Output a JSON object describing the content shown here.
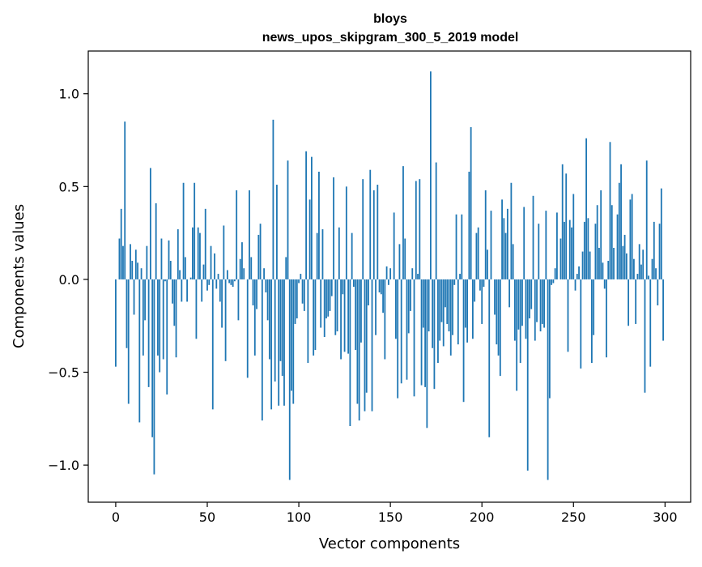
{
  "chart_data": {
    "type": "bar",
    "title": "bloys",
    "subtitle": "news_upos_skipgram_300_5_2019 model",
    "xlabel": "Vector components",
    "ylabel": "Components values",
    "xlim": [
      -15,
      314
    ],
    "ylim": [
      -1.2,
      1.23
    ],
    "x_ticks": [
      0,
      50,
      100,
      150,
      200,
      250,
      300
    ],
    "x_tick_labels": [
      "0",
      "50",
      "100",
      "150",
      "200",
      "250",
      "300"
    ],
    "y_ticks": [
      -1.0,
      -0.5,
      0.0,
      0.5,
      1.0
    ],
    "y_tick_labels": [
      "−1.0",
      "−0.5",
      "0.0",
      "0.5",
      "1.0"
    ],
    "grid": false,
    "legend": "none",
    "bar_color": "#1f77b4",
    "x": "0..299",
    "values": [
      -0.47,
      0.0,
      0.22,
      0.38,
      0.18,
      0.85,
      -0.37,
      -0.67,
      0.19,
      0.1,
      -0.19,
      0.16,
      0.09,
      -0.77,
      0.06,
      -0.41,
      -0.22,
      0.18,
      -0.58,
      0.6,
      -0.85,
      -1.05,
      0.41,
      -0.41,
      -0.5,
      0.22,
      -0.43,
      -0.01,
      -0.62,
      0.21,
      0.1,
      -0.13,
      -0.25,
      -0.42,
      0.27,
      0.05,
      -0.12,
      0.52,
      0.12,
      -0.12,
      0.0,
      0.01,
      0.28,
      0.52,
      -0.32,
      0.28,
      0.25,
      -0.12,
      0.08,
      0.38,
      -0.06,
      -0.03,
      0.18,
      -0.7,
      0.14,
      -0.05,
      0.03,
      -0.12,
      -0.26,
      0.29,
      -0.44,
      0.05,
      -0.02,
      -0.03,
      -0.04,
      -0.01,
      0.48,
      -0.22,
      0.11,
      0.2,
      0.06,
      0.0,
      -0.53,
      0.48,
      0.12,
      -0.14,
      -0.41,
      -0.16,
      0.24,
      0.3,
      -0.76,
      0.06,
      -0.07,
      -0.22,
      -0.43,
      -0.7,
      0.86,
      -0.55,
      0.51,
      -0.68,
      -0.44,
      -0.52,
      -0.68,
      0.12,
      0.64,
      -1.08,
      -0.6,
      -0.67,
      -0.24,
      -0.21,
      -0.02,
      0.03,
      -0.13,
      -0.17,
      0.69,
      -0.45,
      0.43,
      0.66,
      -0.41,
      -0.38,
      0.25,
      0.58,
      -0.26,
      0.27,
      -0.31,
      -0.21,
      -0.2,
      -0.17,
      -0.09,
      0.55,
      -0.3,
      -0.28,
      0.28,
      -0.43,
      -0.08,
      -0.39,
      0.5,
      -0.4,
      -0.79,
      0.25,
      -0.04,
      -0.38,
      -0.67,
      -0.76,
      -0.34,
      0.54,
      -0.71,
      -0.61,
      -0.14,
      0.59,
      -0.71,
      0.48,
      -0.3,
      0.51,
      -0.07,
      -0.08,
      -0.18,
      -0.43,
      0.07,
      -0.03,
      0.06,
      0.0,
      0.36,
      -0.32,
      -0.64,
      0.19,
      -0.56,
      0.61,
      0.22,
      -0.54,
      -0.29,
      -0.17,
      0.06,
      -0.63,
      0.53,
      0.03,
      0.54,
      -0.57,
      -0.26,
      -0.58,
      -0.8,
      -0.28,
      1.12,
      -0.37,
      -0.59,
      0.63,
      -0.45,
      -0.33,
      -0.23,
      -0.36,
      -0.15,
      -0.24,
      -0.28,
      -0.41,
      -0.3,
      -0.03,
      0.35,
      -0.35,
      0.03,
      0.35,
      -0.66,
      -0.26,
      -0.34,
      0.58,
      0.82,
      -0.32,
      -0.12,
      0.25,
      0.28,
      -0.06,
      -0.24,
      -0.04,
      0.48,
      0.16,
      -0.85,
      0.37,
      0.0,
      -0.19,
      -0.35,
      -0.41,
      -0.52,
      0.43,
      0.33,
      0.25,
      0.38,
      -0.15,
      0.52,
      0.19,
      -0.33,
      -0.6,
      -0.27,
      -0.45,
      -0.25,
      0.39,
      -0.32,
      -1.03,
      -0.21,
      -0.16,
      0.45,
      -0.33,
      -0.23,
      0.3,
      -0.28,
      -0.24,
      -0.26,
      0.37,
      -1.08,
      -0.64,
      -0.03,
      -0.02,
      0.06,
      0.36,
      0.0,
      0.22,
      0.62,
      0.31,
      0.57,
      -0.39,
      0.32,
      0.28,
      0.46,
      -0.06,
      0.03,
      0.07,
      -0.48,
      0.15,
      0.31,
      0.76,
      0.33,
      0.15,
      -0.45,
      -0.3,
      0.3,
      0.4,
      0.17,
      0.48,
      0.09,
      -0.05,
      -0.42,
      0.1,
      0.74,
      0.4,
      0.17,
      0.0,
      0.35,
      0.52,
      0.62,
      0.18,
      0.24,
      0.14,
      -0.25,
      0.43,
      0.46,
      0.11,
      -0.24,
      0.03,
      0.19,
      0.08,
      0.16,
      -0.61,
      0.64,
      0.02,
      -0.47,
      0.11,
      0.31,
      0.06,
      -0.14,
      0.3,
      0.49,
      -0.33
    ]
  }
}
